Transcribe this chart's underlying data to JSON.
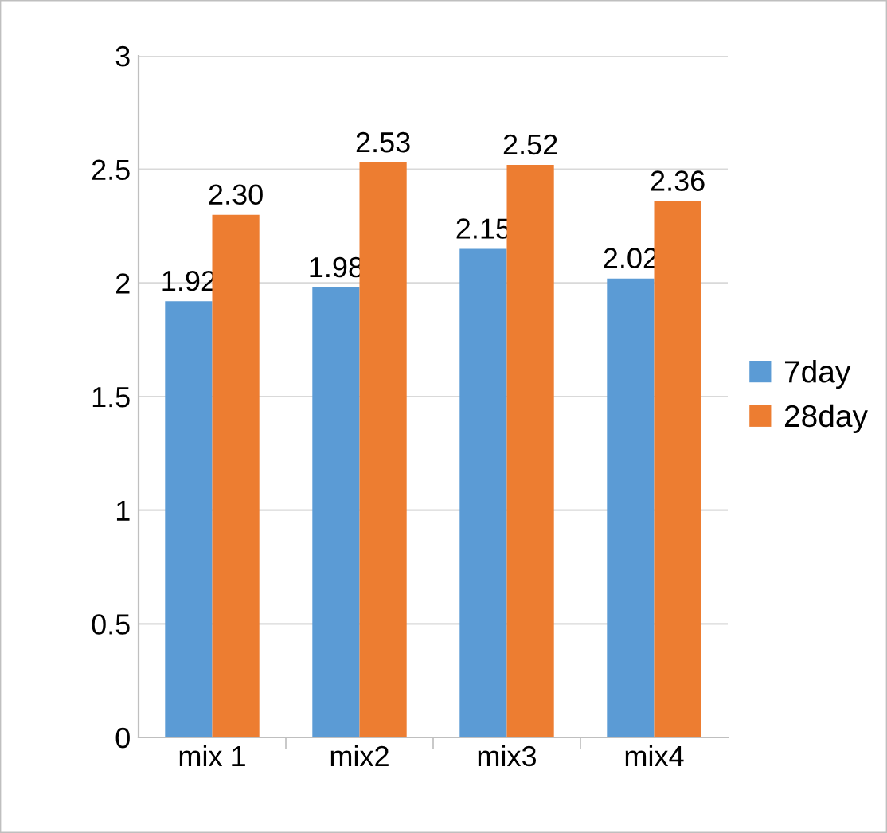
{
  "chart_data": {
    "type": "bar",
    "categories": [
      "mix 1",
      "mix2",
      "mix3",
      "mix4"
    ],
    "series": [
      {
        "name": "7day",
        "color": "#5b9bd5",
        "values": [
          1.92,
          1.98,
          2.15,
          2.02
        ],
        "value_labels": [
          "1.92",
          "1.98",
          "2.15",
          "2.02"
        ]
      },
      {
        "name": "28day",
        "color": "#ed7d31",
        "values": [
          2.3,
          2.53,
          2.52,
          2.36
        ],
        "value_labels": [
          "2.30",
          "2.53",
          "2.52",
          "2.36"
        ]
      }
    ],
    "ylim": [
      0,
      3
    ],
    "yticks": [
      0,
      {
        "value": 0.5,
        "label": "0.5"
      },
      1,
      {
        "value": 1.5,
        "label": "1.5"
      },
      2,
      {
        "value": 2.5,
        "label": "2.5"
      },
      3
    ],
    "grid": "y",
    "legend": "right"
  }
}
